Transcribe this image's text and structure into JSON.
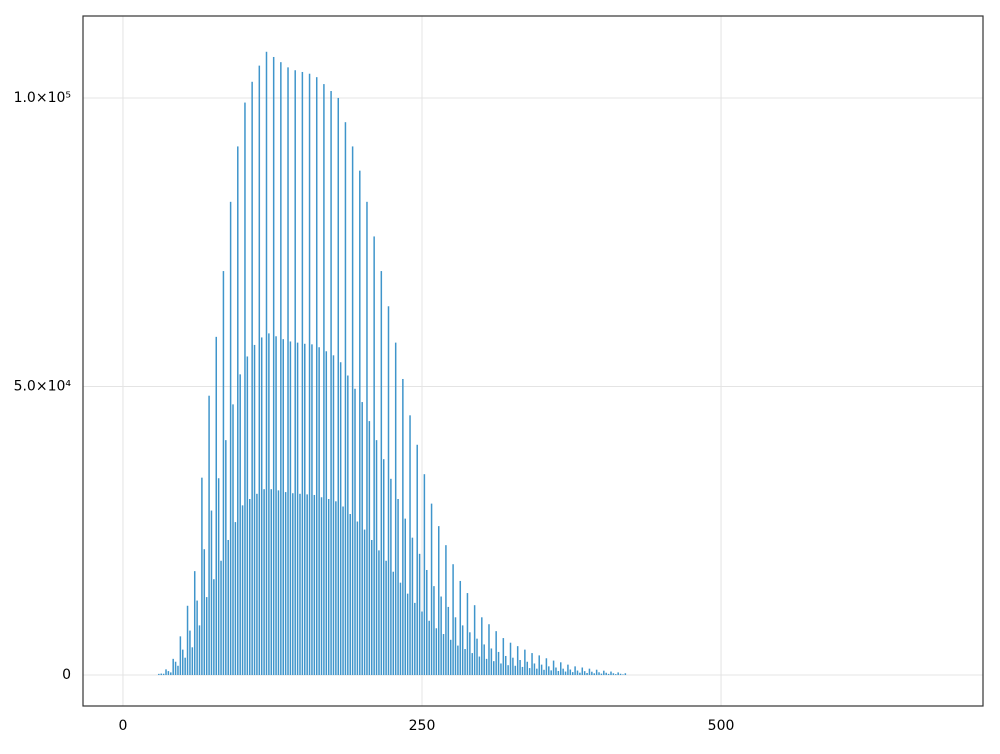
{
  "chart_data": {
    "type": "bar",
    "color": "#3f95cb",
    "grid": true,
    "xlim": [
      -33.4,
      719
    ],
    "ylim": [
      -5370,
      114200
    ],
    "xticks": [
      0,
      250,
      500
    ],
    "yticks": [
      0,
      {
        "value": 50000,
        "label": "5.0×10⁴"
      },
      {
        "value": 100000,
        "label": "1.0×10⁵"
      }
    ],
    "x": [
      30,
      32,
      34,
      36,
      38,
      40,
      42,
      44,
      46,
      48,
      50,
      52,
      54,
      56,
      58,
      60,
      62,
      64,
      66,
      68,
      70,
      72,
      74,
      76,
      78,
      80,
      82,
      84,
      86,
      88,
      90,
      92,
      94,
      96,
      98,
      100,
      102,
      104,
      106,
      108,
      110,
      112,
      114,
      116,
      118,
      120,
      122,
      124,
      126,
      128,
      130,
      132,
      134,
      136,
      138,
      140,
      142,
      144,
      146,
      148,
      150,
      152,
      154,
      156,
      158,
      160,
      162,
      164,
      166,
      168,
      170,
      172,
      174,
      176,
      178,
      180,
      182,
      184,
      186,
      188,
      190,
      192,
      194,
      196,
      198,
      200,
      202,
      204,
      206,
      208,
      210,
      212,
      214,
      216,
      218,
      220,
      222,
      224,
      226,
      228,
      230,
      232,
      234,
      236,
      238,
      240,
      242,
      244,
      246,
      248,
      250,
      252,
      254,
      256,
      258,
      260,
      262,
      264,
      266,
      268,
      270,
      272,
      274,
      276,
      278,
      280,
      282,
      284,
      286,
      288,
      290,
      292,
      294,
      296,
      298,
      300,
      302,
      304,
      306,
      308,
      310,
      312,
      314,
      316,
      318,
      320,
      322,
      324,
      326,
      328,
      330,
      332,
      334,
      336,
      338,
      340,
      342,
      344,
      346,
      348,
      350,
      352,
      354,
      356,
      358,
      360,
      362,
      364,
      366,
      368,
      370,
      372,
      374,
      376,
      378,
      380,
      382,
      384,
      386,
      388,
      390,
      392,
      394,
      396,
      398,
      400,
      402,
      404,
      406,
      408,
      410,
      412,
      414,
      416,
      418,
      420
    ],
    "values": [
      200,
      250,
      220,
      980,
      680,
      450,
      2800,
      2300,
      1600,
      6700,
      4400,
      3000,
      12000,
      7700,
      4800,
      18000,
      12900,
      8600,
      34200,
      21800,
      13500,
      48400,
      28500,
      16600,
      58600,
      34100,
      19800,
      70000,
      40700,
      23400,
      82000,
      46900,
      26500,
      91600,
      52100,
      29400,
      99200,
      55200,
      30500,
      102800,
      57200,
      31400,
      105600,
      58500,
      32200,
      108000,
      59200,
      32200,
      107100,
      58700,
      32000,
      106200,
      58200,
      31700,
      105300,
      57800,
      31500,
      104800,
      57600,
      31400,
      104500,
      57400,
      31300,
      104200,
      57300,
      31200,
      103600,
      56800,
      30800,
      102400,
      56100,
      30500,
      101200,
      55400,
      30100,
      100000,
      54200,
      29200,
      95800,
      51900,
      27900,
      91600,
      49600,
      26600,
      87400,
      47300,
      25200,
      82000,
      44000,
      23400,
      76000,
      40700,
      21600,
      70000,
      37400,
      19800,
      63900,
      34000,
      17900,
      57600,
      30500,
      16000,
      51300,
      27100,
      14100,
      45000,
      23800,
      12500,
      39900,
      21000,
      11000,
      34800,
      18200,
      9400,
      29700,
      15400,
      8100,
      25800,
      13600,
      7100,
      22500,
      11800,
      6100,
      19200,
      10000,
      5100,
      16300,
      8600,
      4500,
      14200,
      7400,
      3800,
      12100,
      6300,
      3200,
      10000,
      5300,
      2800,
      8800,
      4600,
      2400,
      7600,
      4000,
      2000,
      6400,
      3300,
      1700,
      5600,
      3000,
      1600,
      5000,
      2600,
      1400,
      4400,
      2300,
      1200,
      3800,
      2000,
      1100,
      3400,
      1800,
      900,
      2900,
      1500,
      800,
      2500,
      1300,
      700,
      2200,
      1100,
      600,
      1800,
      950,
      500,
      1500,
      770,
      400,
      1300,
      670,
      350,
      1100,
      570,
      290,
      920,
      470,
      240,
      750,
      390,
      200,
      600,
      300,
      150,
      450,
      220,
      100,
      300
    ]
  }
}
